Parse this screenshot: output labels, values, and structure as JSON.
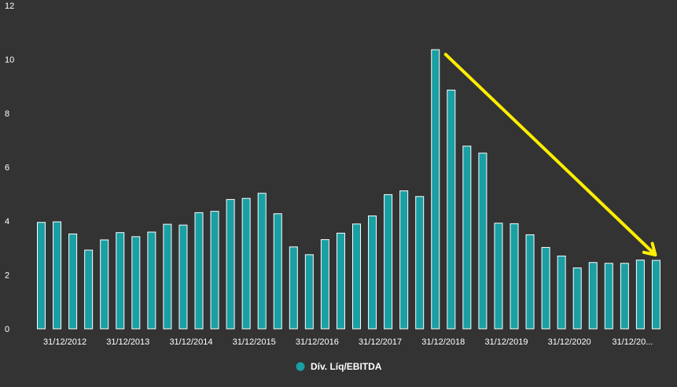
{
  "chart_data": {
    "type": "bar",
    "ylim": [
      0,
      12
    ],
    "yticks": [
      "0",
      "2",
      "4",
      "6",
      "8",
      "10",
      "12"
    ],
    "grid": false,
    "legend_position": "bottom-center",
    "xtick_labels": [
      "31/12/2012",
      "31/12/2013",
      "31/12/2014",
      "31/12/2015",
      "31/12/2016",
      "31/12/2017",
      "31/12/2018",
      "31/12/2019",
      "31/12/2020",
      "31/12/20..."
    ],
    "series": [
      {
        "name": "Dív. Líq/EBITDA",
        "color": "#1a9fa3",
        "values": [
          3.95,
          3.97,
          3.52,
          2.92,
          3.3,
          3.57,
          3.42,
          3.59,
          3.88,
          3.85,
          4.31,
          4.36,
          4.8,
          4.84,
          5.03,
          4.27,
          3.04,
          2.75,
          3.31,
          3.55,
          3.89,
          4.19,
          4.98,
          5.12,
          4.91,
          10.36,
          8.86,
          6.78,
          6.52,
          3.92,
          3.9,
          3.49,
          3.02,
          2.7,
          2.26,
          2.46,
          2.43,
          2.43,
          2.55,
          2.54
        ]
      }
    ],
    "annotation": {
      "type": "arrow",
      "color": "#ffef00",
      "from_bar_index": 25,
      "to_bar_index": 39
    }
  }
}
